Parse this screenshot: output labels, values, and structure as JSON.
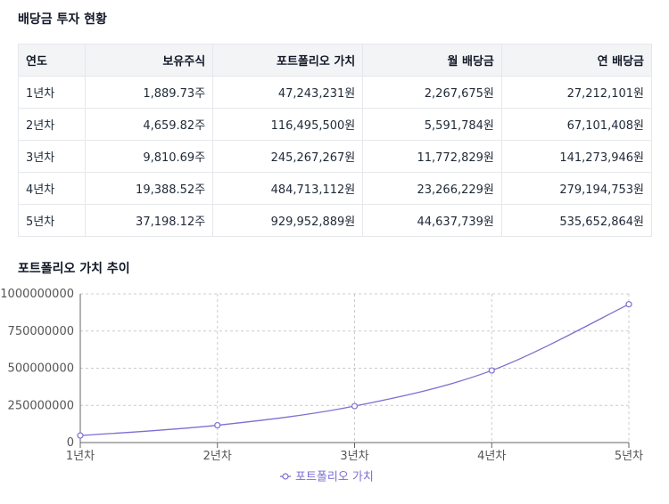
{
  "table_title": "배당금 투자 현황",
  "table": {
    "headers": [
      "연도",
      "보유주식",
      "포트폴리오 가치",
      "월 배당금",
      "연 배당금"
    ],
    "rows": [
      [
        "1년차",
        "1,889.73주",
        "47,243,231원",
        "2,267,675원",
        "27,212,101원"
      ],
      [
        "2년차",
        "4,659.82주",
        "116,495,500원",
        "5,591,784원",
        "67,101,408원"
      ],
      [
        "3년차",
        "9,810.69주",
        "245,267,267원",
        "11,772,829원",
        "141,273,946원"
      ],
      [
        "4년차",
        "19,388.52주",
        "484,713,112원",
        "23,266,229원",
        "279,194,753원"
      ],
      [
        "5년차",
        "37,198.12주",
        "929,952,889원",
        "44,637,739원",
        "535,652,864원"
      ]
    ]
  },
  "chart_title": "포트폴리오 가치 추이",
  "chart_data": {
    "type": "line",
    "title": "포트폴리오 가치 추이",
    "categories": [
      "1년차",
      "2년차",
      "3년차",
      "4년차",
      "5년차"
    ],
    "series": [
      {
        "name": "포트폴리오 가치",
        "values": [
          47243231,
          116495500,
          245267267,
          484713112,
          929952889
        ],
        "color": "#7b6fd0"
      }
    ],
    "ylim": [
      0,
      1000000000
    ],
    "y_ticks": [
      "0",
      "250000000",
      "500000000",
      "750000000",
      "1000000000"
    ],
    "grid": true,
    "legend": "bottom"
  },
  "colors": {
    "line": "#7b6fd0",
    "grid": "#cccccc",
    "axis": "#666666",
    "header_bg": "#f3f4f6"
  }
}
